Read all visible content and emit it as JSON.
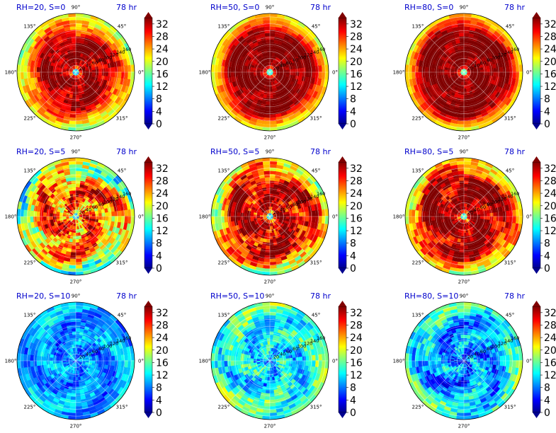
{
  "figure": {
    "layout": "3x3 grid of polar contour plots with colorbars",
    "colormap": "jet"
  },
  "chart_data": {
    "type": "polar-contour-grid",
    "time_label": "78 hr",
    "angle_ticks": [
      "90°",
      "45°",
      "0°",
      "315°",
      "270°",
      "225°",
      "180°",
      "135°"
    ],
    "angle_tick_degrees": [
      90,
      45,
      0,
      315,
      270,
      225,
      180,
      135
    ],
    "radial_ticks": [
      20,
      40,
      60,
      80,
      100,
      120,
      140,
      160
    ],
    "colorbar": {
      "ticks": [
        0,
        4,
        8,
        12,
        16,
        20,
        24,
        28,
        32
      ],
      "range": [
        0,
        34
      ],
      "extend": "both"
    },
    "panels": [
      {
        "title": "RH=20, S=0",
        "rh": 20,
        "s": 0,
        "eye_level": 12,
        "core_level": 33,
        "outer_level": 19,
        "core_radius": 95,
        "variability": 3,
        "time": "78 hr"
      },
      {
        "title": "RH=50, S=0",
        "rh": 50,
        "s": 0,
        "eye_level": 14,
        "core_level": 34,
        "outer_level": 20,
        "core_radius": 115,
        "variability": 2,
        "time": "78 hr"
      },
      {
        "title": "RH=80, S=0",
        "rh": 80,
        "s": 0,
        "eye_level": 16,
        "core_level": 34,
        "outer_level": 21,
        "core_radius": 125,
        "variability": 2,
        "time": "78 hr"
      },
      {
        "title": "RH=20, S=5",
        "rh": 20,
        "s": 5,
        "eye_level": 12,
        "core_level": 27,
        "outer_level": 16,
        "core_radius": 95,
        "variability": 6,
        "time": "78 hr"
      },
      {
        "title": "RH=50, S=5",
        "rh": 50,
        "s": 5,
        "eye_level": 13,
        "core_level": 32,
        "outer_level": 19,
        "core_radius": 110,
        "variability": 5,
        "time": "78 hr"
      },
      {
        "title": "RH=80, S=5",
        "rh": 80,
        "s": 5,
        "eye_level": 14,
        "core_level": 33,
        "outer_level": 20,
        "core_radius": 115,
        "variability": 4,
        "time": "78 hr"
      },
      {
        "title": "RH=20, S=10",
        "rh": 20,
        "s": 10,
        "eye_level": 8,
        "core_level": 9,
        "outer_level": 10,
        "core_radius": 90,
        "variability": 3,
        "time": "78 hr"
      },
      {
        "title": "RH=50, S=10",
        "rh": 50,
        "s": 10,
        "eye_level": 8,
        "core_level": 12,
        "outer_level": 16,
        "core_radius": 90,
        "variability": 4,
        "time": "78 hr"
      },
      {
        "title": "RH=80, S=10",
        "rh": 80,
        "s": 10,
        "eye_level": 4,
        "core_level": 9,
        "outer_level": 15,
        "core_radius": 100,
        "variability": 4,
        "time": "78 hr"
      }
    ]
  }
}
